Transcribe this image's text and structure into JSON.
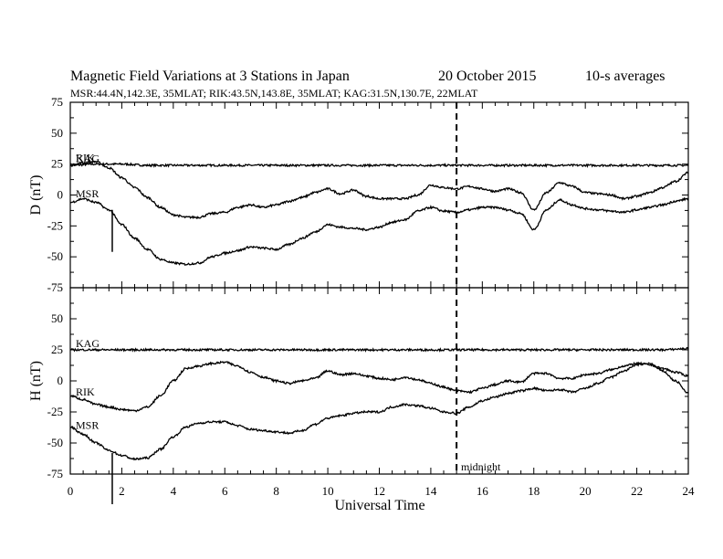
{
  "header": {
    "title_main": "Magnetic Field Variations at 3 Stations in Japan",
    "title_date": "20 October 2015",
    "title_avg": "10-s averages",
    "subtitle": "MSR:44.4N,142.3E, 35MLAT;   RIK:43.5N,143.8E, 35MLAT;   KAG:31.5N,130.7E, 22MLAT"
  },
  "chart_data": {
    "type": "line",
    "title": "Magnetic Field Variations at 3 Stations in Japan",
    "xlabel": "Universal Time",
    "xlim": [
      0,
      24
    ],
    "x_ticks": [
      0,
      2,
      4,
      6,
      8,
      10,
      12,
      14,
      16,
      18,
      20,
      22,
      24
    ],
    "x_tick_labels": [
      "0",
      "2",
      "4",
      "6",
      "8",
      "10",
      "12",
      "14",
      "16",
      "18",
      "20",
      "22",
      "24"
    ],
    "midnight_line_x": 15,
    "midnight_label": "midnight",
    "event_marker_x": 1.63,
    "panels": [
      {
        "id": "D",
        "ylabel": "D (nT)",
        "ylim": [
          -75,
          75
        ],
        "y_ticks": [
          75,
          50,
          25,
          0,
          -25,
          -50,
          -75
        ],
        "y_tick_labels": [
          "75",
          "50",
          "25",
          "0",
          "-25",
          "-50",
          "-75"
        ],
        "series": [
          {
            "name": "KAG",
            "x": [
              0,
              1,
              2,
              3,
              4,
              5,
              6,
              7,
              8,
              9,
              10,
              11,
              12,
              13,
              14,
              15,
              16,
              17,
              18,
              19,
              20,
              21,
              22,
              23,
              24
            ],
            "y": [
              24,
              25,
              25,
              24,
              24,
              24,
              24,
              24,
              24,
              24,
              24,
              24,
              24,
              24,
              24,
              24,
              24,
              24,
              24,
              24,
              24,
              24,
              24,
              24,
              24
            ]
          },
          {
            "name": "RIK",
            "x": [
              0,
              0.5,
              1,
              1.5,
              2,
              2.5,
              3,
              3.5,
              4,
              4.5,
              5,
              5.5,
              6,
              6.5,
              7,
              7.5,
              8,
              8.5,
              9,
              9.5,
              10,
              10.5,
              11,
              11.5,
              12,
              12.5,
              13,
              13.5,
              14,
              14.5,
              15,
              15.5,
              16,
              16.5,
              17,
              17.5,
              18,
              18.5,
              19,
              19.5,
              20,
              20.5,
              21,
              21.5,
              22,
              22.5,
              23,
              23.5,
              24
            ],
            "y": [
              24,
              26,
              27,
              22,
              14,
              6,
              -2,
              -10,
              -16,
              -18,
              -18,
              -15,
              -14,
              -10,
              -8,
              -10,
              -8,
              -5,
              -2,
              2,
              5,
              1,
              4,
              -1,
              -3,
              -3,
              -3,
              0,
              8,
              6,
              5,
              7,
              5,
              3,
              5,
              2,
              -12,
              2,
              10,
              7,
              2,
              1,
              0,
              -3,
              -1,
              2,
              6,
              11,
              18
            ]
          },
          {
            "name": "MSR",
            "x": [
              0,
              0.5,
              1,
              1.5,
              2,
              2.5,
              3,
              3.5,
              4,
              4.5,
              5,
              5.5,
              6,
              6.5,
              7,
              7.5,
              8,
              8.5,
              9,
              9.5,
              10,
              10.5,
              11,
              11.5,
              12,
              12.5,
              13,
              13.5,
              14,
              14.5,
              15,
              15.5,
              16,
              16.5,
              17,
              17.5,
              18,
              18.5,
              19,
              19.5,
              20,
              20.5,
              21,
              21.5,
              22,
              22.5,
              23,
              23.5,
              24
            ],
            "y": [
              -6,
              -3,
              -6,
              -12,
              -24,
              -35,
              -44,
              -52,
              -55,
              -56,
              -55,
              -50,
              -47,
              -45,
              -42,
              -43,
              -44,
              -40,
              -35,
              -30,
              -24,
              -26,
              -27,
              -28,
              -26,
              -22,
              -20,
              -13,
              -10,
              -13,
              -14,
              -12,
              -10,
              -10,
              -12,
              -15,
              -28,
              -12,
              -4,
              -8,
              -11,
              -12,
              -13,
              -14,
              -12,
              -10,
              -8,
              -5,
              -3
            ]
          }
        ]
      },
      {
        "id": "H",
        "ylabel": "H (nT)",
        "ylim": [
          -75,
          75
        ],
        "y_ticks": [
          75,
          50,
          25,
          0,
          -25,
          -50,
          -75
        ],
        "y_tick_labels": [
          "75",
          "50",
          "25",
          "0",
          "-25",
          "-50",
          "-75"
        ],
        "series": [
          {
            "name": "KAG",
            "x": [
              0,
              1,
              2,
              3,
              4,
              5,
              6,
              7,
              8,
              9,
              10,
              11,
              12,
              13,
              14,
              15,
              16,
              17,
              18,
              19,
              20,
              21,
              22,
              23,
              24
            ],
            "y": [
              25,
              25,
              25,
              25,
              25,
              25,
              25,
              25,
              25,
              25,
              25,
              25,
              25,
              25,
              25,
              25,
              25,
              25,
              25,
              25,
              25,
              25,
              25,
              25,
              26
            ]
          },
          {
            "name": "RIK",
            "x": [
              0,
              0.5,
              1,
              1.5,
              2,
              2.5,
              3,
              3.5,
              4,
              4.5,
              5,
              5.5,
              6,
              6.5,
              7,
              7.5,
              8,
              8.5,
              9,
              9.5,
              10,
              10.5,
              11,
              11.5,
              12,
              12.5,
              13,
              13.5,
              14,
              14.5,
              15,
              15.5,
              16,
              16.5,
              17,
              17.5,
              18,
              18.5,
              19,
              19.5,
              20,
              20.5,
              21,
              21.5,
              22,
              22.5,
              23,
              23.5,
              24
            ],
            "y": [
              -12,
              -15,
              -19,
              -21,
              -23,
              -24,
              -21,
              -12,
              0,
              10,
              12,
              14,
              15,
              12,
              7,
              3,
              0,
              -2,
              0,
              2,
              8,
              5,
              6,
              4,
              2,
              1,
              3,
              1,
              -2,
              -5,
              -8,
              -9,
              -6,
              -3,
              0,
              -1,
              6,
              6,
              2,
              2,
              5,
              6,
              9,
              12,
              14,
              13,
              10,
              7,
              4
            ]
          },
          {
            "name": "MSR",
            "x": [
              0,
              0.5,
              1,
              1.5,
              2,
              2.5,
              3,
              3.5,
              4,
              4.5,
              5,
              5.5,
              6,
              6.5,
              7,
              7.5,
              8,
              8.5,
              9,
              9.5,
              10,
              10.5,
              11,
              11.5,
              12,
              12.5,
              13,
              13.5,
              14,
              14.5,
              15,
              15.5,
              16,
              16.5,
              17,
              17.5,
              18,
              18.5,
              19,
              19.5,
              20,
              20.5,
              21,
              21.5,
              22,
              22.5,
              23,
              23.5,
              24
            ],
            "y": [
              -37,
              -43,
              -50,
              -56,
              -60,
              -63,
              -62,
              -55,
              -45,
              -37,
              -34,
              -33,
              -33,
              -36,
              -39,
              -40,
              -41,
              -42,
              -40,
              -35,
              -30,
              -28,
              -26,
              -25,
              -25,
              -21,
              -19,
              -20,
              -22,
              -25,
              -26,
              -21,
              -16,
              -13,
              -10,
              -8,
              -6,
              -8,
              -7,
              -9,
              -6,
              -2,
              3,
              8,
              13,
              14,
              8,
              0,
              -10
            ]
          }
        ]
      }
    ],
    "grid": false,
    "legend": "none"
  }
}
